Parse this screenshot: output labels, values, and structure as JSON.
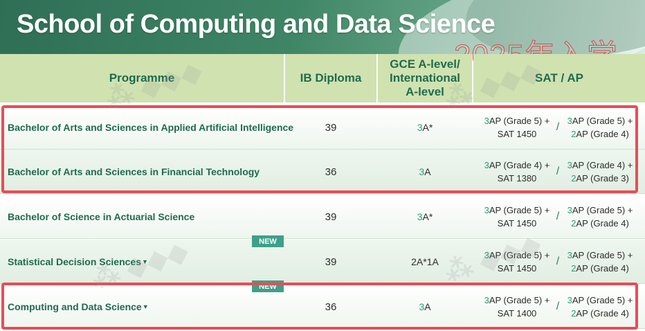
{
  "banner": {
    "title": "School of Computing and Data Science",
    "year_label": "2025年入学"
  },
  "table": {
    "headers": {
      "programme": "Programme",
      "ib": "IB Diploma",
      "gce_line1": "GCE A-level/",
      "gce_line2": "International",
      "gce_line3": "A-level",
      "sat": "SAT / AP"
    },
    "rows": [
      {
        "programme": "Bachelor of Arts and Sciences in Applied Artificial Intelligence",
        "has_dropdown": false,
        "new": false,
        "ib": "39",
        "gce_hi": "3",
        "gce_rest": "A*",
        "sat1_hi": "3",
        "sat1_line1": "AP (Grade 5) +",
        "sat1_line2": "SAT 1450",
        "slash": "/",
        "sat2_hi1": "3",
        "sat2_line1": "AP (Grade 5) +",
        "sat2_hi2": "2",
        "sat2_line2": "AP (Grade 4)"
      },
      {
        "programme": "Bachelor of Arts and Sciences in Financial Technology",
        "has_dropdown": false,
        "new": false,
        "ib": "36",
        "gce_hi": "3",
        "gce_rest": "A",
        "sat1_hi": "3",
        "sat1_line1": "AP (Grade 4) +",
        "sat1_line2": "SAT 1380",
        "slash": "/",
        "sat2_hi1": "3",
        "sat2_line1": "AP (Grade 4) +",
        "sat2_hi2": "2",
        "sat2_line2": "AP (Grade 3)"
      },
      {
        "programme": "Bachelor of Science in Actuarial Science",
        "has_dropdown": false,
        "new": false,
        "ib": "39",
        "gce_hi": "3",
        "gce_rest": "A*",
        "sat1_hi": "3",
        "sat1_line1": "AP (Grade 5) +",
        "sat1_line2": "SAT 1450",
        "slash": "/",
        "sat2_hi1": "3",
        "sat2_line1": "AP (Grade 5) +",
        "sat2_hi2": "2",
        "sat2_line2": "AP (Grade 4)"
      },
      {
        "programme": "Statistical Decision Sciences",
        "has_dropdown": true,
        "new": true,
        "new_label": "NEW",
        "ib": "39",
        "gce_hi": "",
        "gce_rest": "2A*1A",
        "sat1_hi": "3",
        "sat1_line1": "AP (Grade 5) +",
        "sat1_line2": "SAT 1450",
        "slash": "/",
        "sat2_hi1": "3",
        "sat2_line1": "AP (Grade 5) +",
        "sat2_hi2": "2",
        "sat2_line2": "AP (Grade 4)"
      },
      {
        "programme": "Computing and Data Science",
        "has_dropdown": true,
        "new": true,
        "new_label": "NEW",
        "ib": "36",
        "gce_hi": "3",
        "gce_rest": "A",
        "sat1_hi": "3",
        "sat1_line1": "AP (Grade 5) +",
        "sat1_line2": "SAT 1400",
        "slash": "/",
        "sat2_hi1": "3",
        "sat2_line1": "AP (Grade 5) +",
        "sat2_hi2": "2",
        "sat2_line2": "AP (Grade 4)"
      }
    ]
  },
  "colors": {
    "header_bg": "#cfe2b0",
    "header_text": "#1f6b4f",
    "highlight_frame": "#ea4c56",
    "new_badge": "#3ea089",
    "accent_digit": "#2a9d7a"
  },
  "icons": {
    "dropdown": "triangle-down-icon"
  }
}
